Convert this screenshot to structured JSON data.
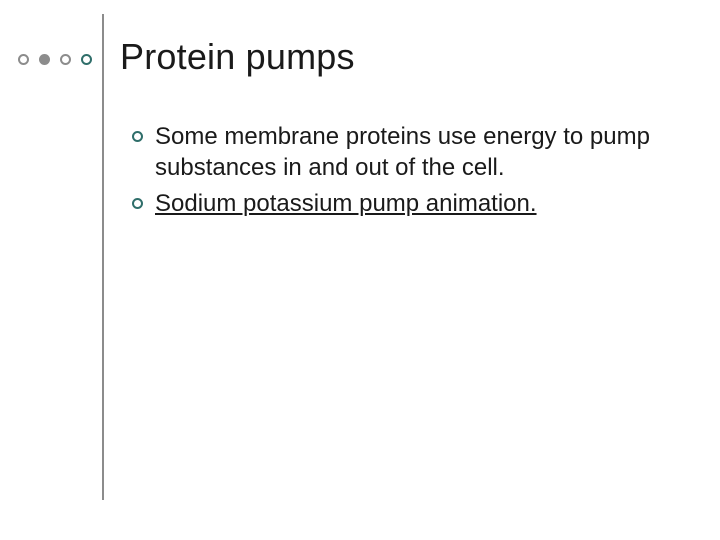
{
  "colors": {
    "accent": "#2f6e6a",
    "text": "#1a1a1a",
    "dot_outline": "#8c8c8c",
    "dot_solid": "#8c8c8c",
    "rule": "#8c8c8c",
    "background": "#ffffff"
  },
  "typography": {
    "title_fontsize": 36,
    "body_fontsize": 24,
    "font_family": "Arial"
  },
  "decor": {
    "dot_count": 4,
    "dot_styles": [
      "outline",
      "solid",
      "outline",
      "outline"
    ],
    "vline_height": 486
  },
  "title": "Protein pumps",
  "bullets": [
    {
      "text": "Some membrane proteins use energy to pump substances in and out of the cell.",
      "underline": false
    },
    {
      "text": "Sodium potassium pump animation.",
      "underline": true
    }
  ]
}
